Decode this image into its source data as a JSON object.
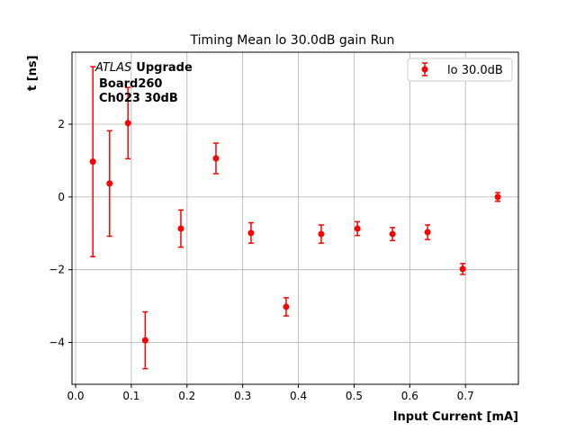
{
  "chart_data": {
    "type": "scatter",
    "title": "Timing Mean lo 30.0dB gain Run",
    "xlabel": "Input Current [mA]",
    "ylabel": "t [ns]",
    "xlim": [
      -0.0065,
      0.795
    ],
    "ylim": [
      -5.15,
      3.98
    ],
    "xticks": [
      0.0,
      0.1,
      0.2,
      0.3,
      0.4,
      0.5,
      0.6,
      0.7
    ],
    "xtick_labels": [
      "0.0",
      "0.1",
      "0.2",
      "0.3",
      "0.4",
      "0.5",
      "0.6",
      "0.7"
    ],
    "yticks": [
      -4,
      -2,
      0,
      2
    ],
    "ytick_labels": [
      "−4",
      "−2",
      "0",
      "2"
    ],
    "grid": true,
    "legend_position": "top-right",
    "annotation": {
      "italic": "ATLAS",
      "bold": "Upgrade",
      "line2": "Board260",
      "line3": "Ch023 30dB"
    },
    "series": [
      {
        "name": "lo 30.0dB",
        "color": "#ff0000",
        "x": [
          0.031,
          0.061,
          0.094,
          0.125,
          0.189,
          0.252,
          0.315,
          0.378,
          0.441,
          0.506,
          0.569,
          0.632,
          0.695,
          0.758
        ],
        "y": [
          0.97,
          0.37,
          2.03,
          -3.94,
          -0.87,
          1.06,
          -0.99,
          -3.02,
          -1.02,
          -0.87,
          -1.02,
          -0.97,
          -1.98,
          0.0
        ],
        "err": [
          2.61,
          1.45,
          0.98,
          0.78,
          0.51,
          0.42,
          0.28,
          0.25,
          0.25,
          0.19,
          0.18,
          0.2,
          0.15,
          0.12
        ]
      }
    ]
  }
}
